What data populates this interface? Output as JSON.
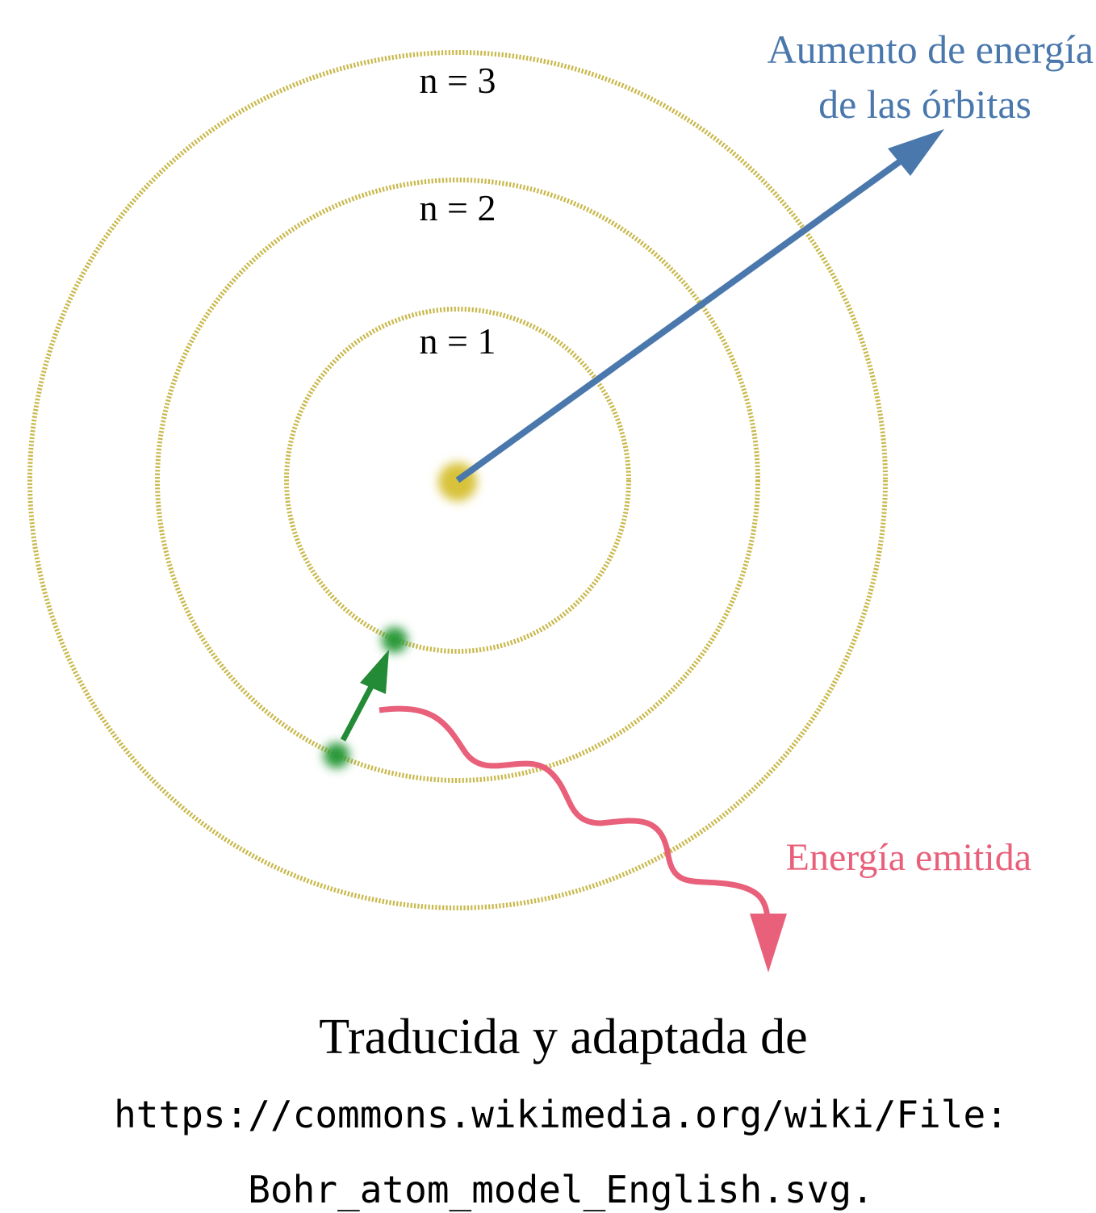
{
  "diagram": {
    "orbits": [
      {
        "label": "n = 1"
      },
      {
        "label": "n = 2"
      },
      {
        "label": "n = 3"
      }
    ],
    "energy_increase": {
      "lines": [
        "Aumento de energía",
        "de las órbitas"
      ]
    },
    "emitted_energy": "Energía emitida",
    "caption": {
      "text": "Traducida y adaptada de",
      "url_lines": [
        "https://commons.wikimedia.org/wiki/File:",
        "Bohr_atom_model_English.svg."
      ]
    }
  }
}
